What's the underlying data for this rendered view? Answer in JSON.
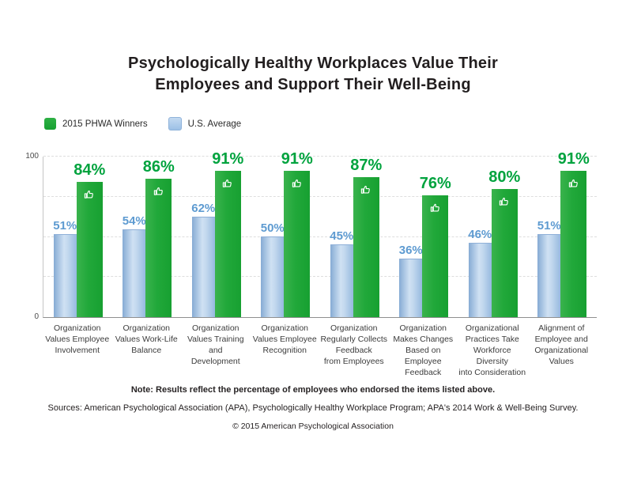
{
  "title": "Psychologically Healthy Workplaces Value Their\nEmployees and Support Their Well-Being",
  "legend": [
    {
      "label": "2015 PHWA Winners",
      "color": "#1ea737",
      "series": "winners"
    },
    {
      "label": "U.S. Average",
      "color": "#aecbea",
      "series": "us_average"
    }
  ],
  "axis": {
    "y_max_label": "100",
    "y_min_label": "0"
  },
  "chart_data": {
    "type": "bar",
    "title": "Psychologically Healthy Workplaces Value Their Employees and Support Their Well-Being",
    "xlabel": "",
    "ylabel": "",
    "ylim": [
      0,
      100
    ],
    "yticks": [
      0,
      100
    ],
    "gridlines": [
      25,
      50,
      75,
      100
    ],
    "grid_style": "dashed",
    "legend_position": "top-left",
    "value_suffix": "%",
    "categories": [
      "Organization\nValues Employee\nInvolvement",
      "Organization\nValues Work-Life\nBalance",
      "Organization\nValues Training and\nDevelopment",
      "Organization\nValues Employee\nRecognition",
      "Organization\nRegularly Collects\nFeedback\nfrom Employees",
      "Organization\nMakes Changes\nBased on Employee\nFeedback",
      "Organizational\nPractices Take\nWorkforce Diversity\ninto Consideration",
      "Alignment of\nEmployee and\nOrganizational\nValues"
    ],
    "series": [
      {
        "name": "U.S. Average",
        "values": [
          51,
          54,
          62,
          50,
          45,
          36,
          46,
          51
        ],
        "bar_color": "#a9c9e9",
        "label_color": "#5e9bd1"
      },
      {
        "name": "2015 PHWA Winners",
        "values": [
          84,
          86,
          91,
          91,
          87,
          76,
          80,
          91
        ],
        "bar_color": "#1ea737",
        "label_color": "#00a33e",
        "icon": "thumbs-up"
      }
    ]
  },
  "footer": {
    "note": "Note: Results reflect the percentage of employees who endorsed the items listed above.",
    "sources": "Sources: American Psychological Association (APA), Psychologically Healthy Workplace Program; APA's 2014 Work & Well-Being Survey.",
    "copyright": "© 2015 American Psychological Association"
  }
}
